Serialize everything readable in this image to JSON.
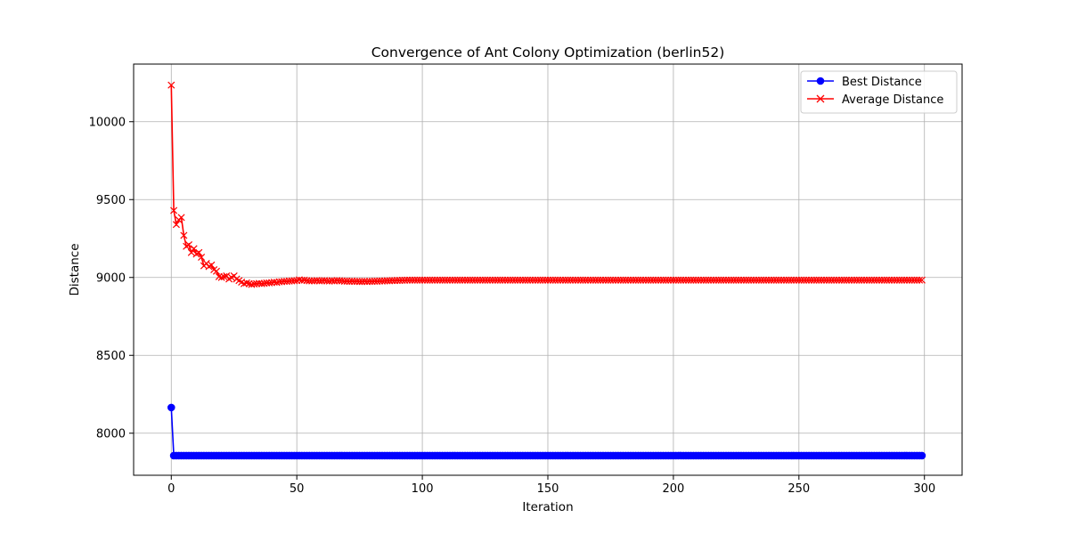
{
  "chart_data": {
    "type": "line",
    "title": "Convergence of Ant Colony Optimization (berlin52)",
    "xlabel": "Iteration",
    "ylabel": "Distance",
    "xlim": [
      -15,
      315
    ],
    "ylim": [
      7730,
      10370
    ],
    "xticks": [
      0,
      50,
      100,
      150,
      200,
      250,
      300
    ],
    "yticks": [
      8000,
      8500,
      9000,
      9500,
      10000
    ],
    "grid": true,
    "legend_position": "top-right",
    "iterations": {
      "start": 0,
      "end": 299
    },
    "series": [
      {
        "name": "Best Distance",
        "color": "#0000ff",
        "marker": "circle",
        "values_head": [
          8165,
          7856
        ],
        "steady_value": 7856
      },
      {
        "name": "Average Distance",
        "color": "#ff0000",
        "marker": "x",
        "values_head": [
          10235,
          9430,
          9340,
          9370,
          9385,
          9270,
          9200,
          9210,
          9160,
          9185,
          9150,
          9160,
          9130,
          9075,
          9090,
          9070,
          9080,
          9050,
          9040,
          9005,
          9000,
          9005,
          9010,
          8990,
          9000,
          9010,
          8990,
          8980,
          8970,
          8960,
          8965,
          8960,
          8955,
          8958,
          8960,
          8962,
          8960,
          8962,
          8965,
          8965,
          8967,
          8970,
          8968,
          8972,
          8973,
          8975,
          8975,
          8977,
          8978,
          8979,
          8980,
          8985,
          8982,
          8983,
          8980,
          8978,
          8978,
          8979,
          8980,
          8978,
          8979,
          8980,
          8978,
          8977,
          8979,
          8978,
          8980,
          8979,
          8978,
          8976,
          8976,
          8975,
          8976,
          8975,
          8975,
          8974,
          8974,
          8975,
          8974,
          8975,
          8975,
          8976,
          8976,
          8977,
          8977,
          8978,
          8979,
          8979,
          8980,
          8980,
          8981,
          8981,
          8982,
          8982
        ],
        "steady_value": 8983
      }
    ]
  }
}
